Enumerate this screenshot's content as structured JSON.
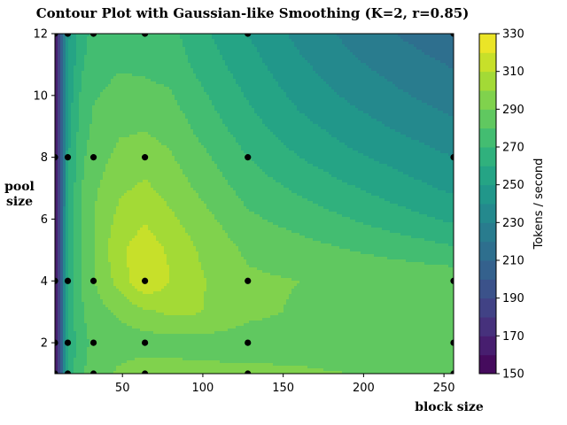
{
  "chart_data": {
    "type": "heatmap",
    "subtype": "filled-contour",
    "title": "Contour Plot with Gaussian-like Smoothing (K=2, r=0.85)",
    "xlabel": "block size",
    "ylabel_lines": [
      "pool",
      "size"
    ],
    "xlim": [
      8,
      256
    ],
    "ylim": [
      1,
      12
    ],
    "xticks": [
      50,
      100,
      150,
      200,
      250
    ],
    "yticks": [
      2,
      4,
      6,
      8,
      10,
      12
    ],
    "colorbar": {
      "label": "Tokens / second",
      "min": 150,
      "max": 330,
      "step": 10,
      "ticks": [
        150,
        170,
        190,
        210,
        230,
        250,
        270,
        290,
        310,
        330
      ]
    },
    "colormap": [
      "#440154",
      "#482878",
      "#3e4a89",
      "#31688e",
      "#26828e",
      "#1f9e89",
      "#35b779",
      "#6ece58",
      "#b5de2b",
      "#fde725"
    ],
    "sample_points": {
      "x": [
        8,
        16,
        32,
        64,
        128,
        256
      ],
      "y": [
        1,
        2,
        4,
        8,
        12
      ],
      "present": [
        [
          1,
          1,
          1,
          1,
          1,
          1
        ],
        [
          1,
          1,
          1,
          1,
          1,
          1
        ],
        [
          1,
          1,
          1,
          1,
          1,
          1
        ],
        [
          1,
          1,
          1,
          1,
          1,
          1
        ],
        [
          1,
          1,
          1,
          1,
          1,
          1
        ]
      ]
    },
    "grid_x": [
      8,
      16,
      24,
      32,
      48,
      64,
      80,
      96,
      128,
      160,
      192,
      224,
      256
    ],
    "grid_y": [
      1,
      2,
      3,
      4,
      5,
      6,
      7,
      8,
      9,
      10,
      11,
      12
    ],
    "values": [
      [
        150,
        262,
        278,
        285,
        292,
        296,
        294,
        293,
        292,
        291,
        290,
        290,
        290
      ],
      [
        150,
        262,
        275,
        283,
        285,
        285,
        286,
        286,
        286,
        287,
        286,
        284,
        283
      ],
      [
        150,
        263,
        278,
        286,
        292,
        298,
        302,
        301,
        292,
        289,
        287,
        286,
        286
      ],
      [
        150,
        263,
        280,
        289,
        304,
        320,
        310,
        302,
        292,
        290,
        289,
        288,
        287
      ],
      [
        150,
        262,
        280,
        290,
        308,
        316,
        308,
        300,
        288,
        284,
        280,
        276,
        272
      ],
      [
        150,
        261,
        280,
        290,
        303,
        309,
        302,
        295,
        282,
        276,
        270,
        264,
        258
      ],
      [
        150,
        260,
        279,
        288,
        298,
        302,
        296,
        289,
        276,
        268,
        261,
        254,
        248
      ],
      [
        150,
        258,
        277,
        285,
        293,
        295,
        291,
        284,
        270,
        260,
        252,
        246,
        240
      ],
      [
        150,
        256,
        274,
        282,
        288,
        289,
        286,
        278,
        264,
        253,
        245,
        238,
        232
      ],
      [
        150,
        253,
        271,
        279,
        283,
        283,
        281,
        273,
        259,
        247,
        238,
        231,
        225
      ],
      [
        150,
        250,
        268,
        276,
        279,
        278,
        276,
        268,
        254,
        242,
        232,
        225,
        219
      ],
      [
        150,
        247,
        265,
        273,
        276,
        275,
        273,
        264,
        250,
        237,
        227,
        219,
        212
      ]
    ]
  }
}
